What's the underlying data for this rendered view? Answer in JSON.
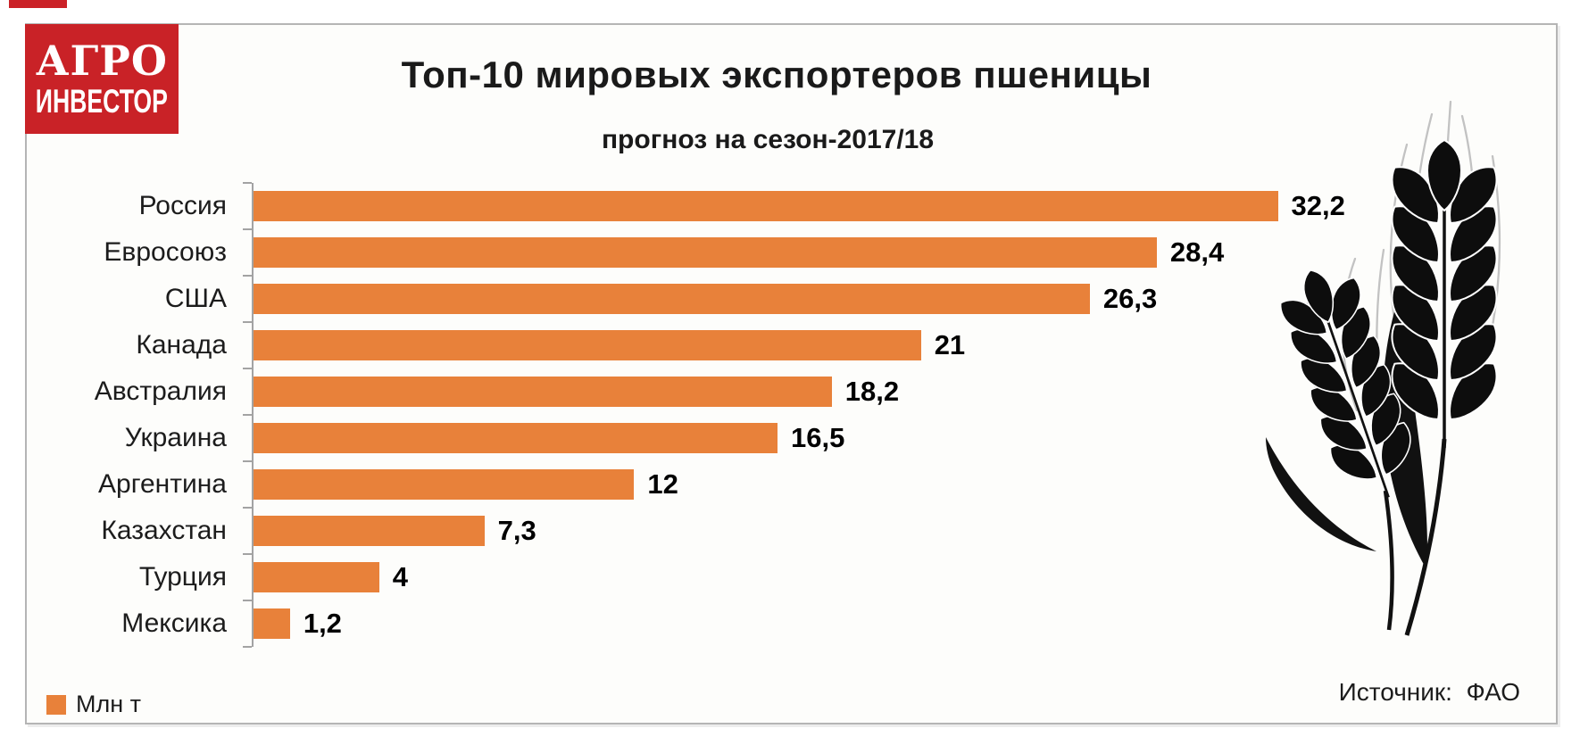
{
  "badge": {
    "top_left_mark_color": "#cb2127"
  },
  "logo": {
    "line1": "АГРО",
    "line2": "ИНВЕСТОР",
    "bg_color": "#c92227",
    "text_color": "#ffffff"
  },
  "chart_data": {
    "type": "bar",
    "orientation": "horizontal",
    "title": "Топ-10 мировых экспортеров пшеницы",
    "subtitle": "прогноз на сезон-2017/18",
    "categories": [
      "Россия",
      "Евросоюз",
      "США",
      "Канада",
      "Австралия",
      "Украина",
      "Аргентина",
      "Казахстан",
      "Турция",
      "Мексика"
    ],
    "values": [
      32.2,
      28.4,
      26.3,
      21,
      18.2,
      16.5,
      12,
      7.3,
      4,
      1.2
    ],
    "value_labels": [
      "32,2",
      "28,4",
      "26,3",
      "21",
      "18,2",
      "16,5",
      "12",
      "7,3",
      "4",
      "1,2"
    ],
    "unit_label": "Млн т",
    "source_label": "Источник:  ФАО",
    "bar_color": "#e8813a",
    "axis_color": "#a3a3a3",
    "xlim": [
      0,
      33
    ],
    "grid": false,
    "legend_position": "bottom-left",
    "value_label_position": "end-of-bar"
  }
}
